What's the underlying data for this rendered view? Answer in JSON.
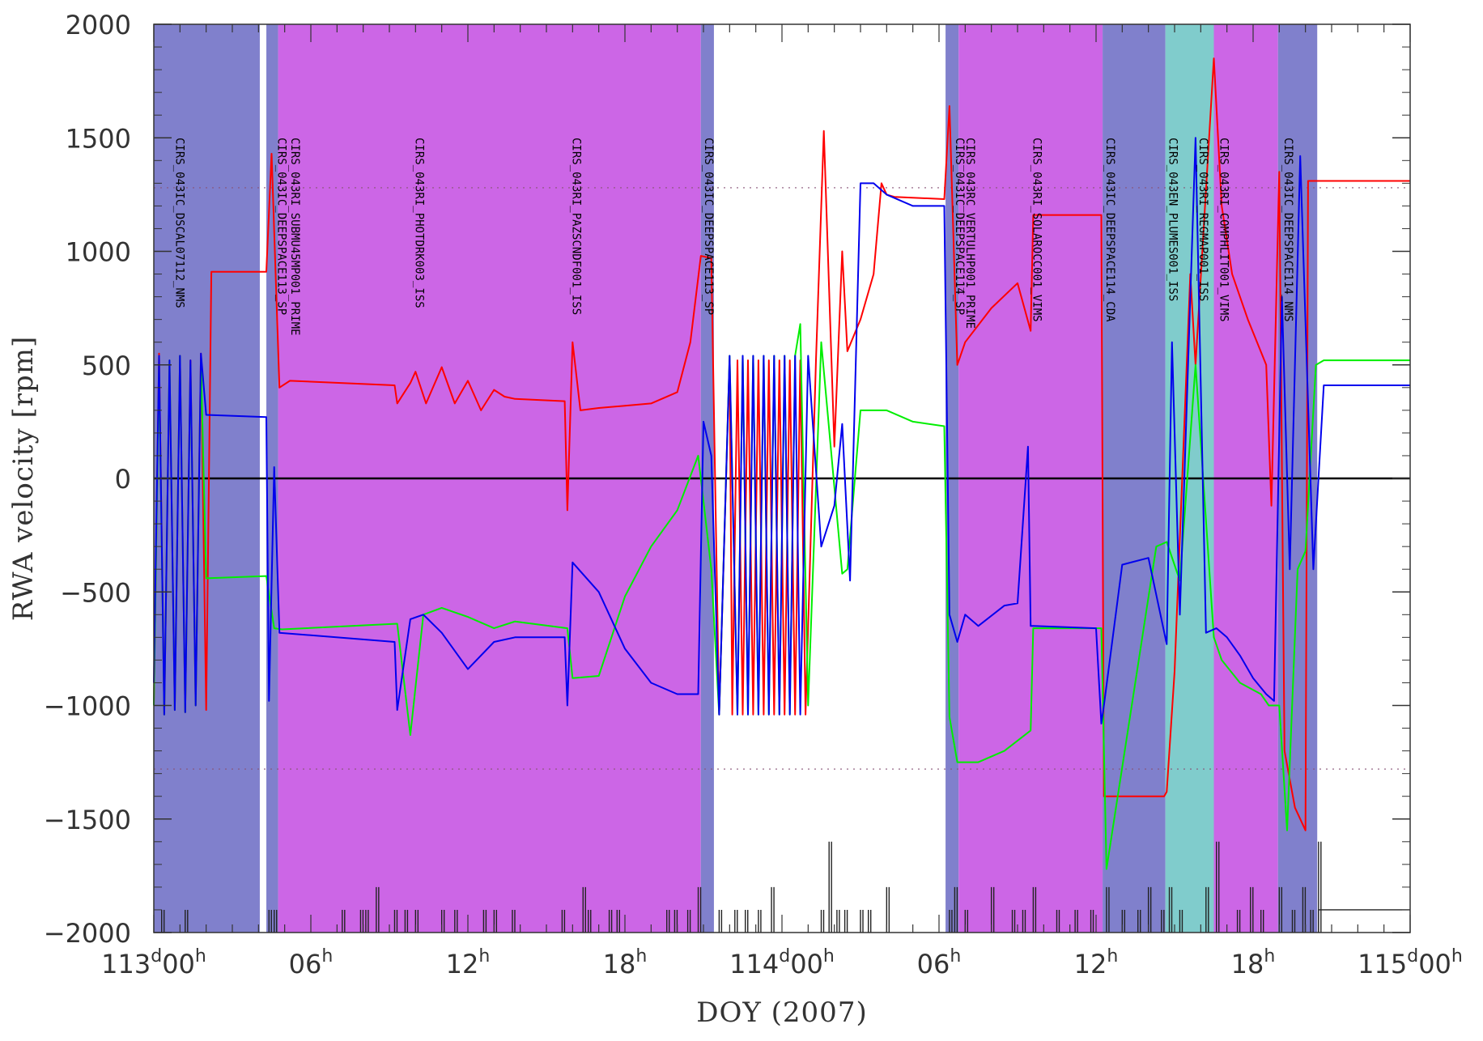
{
  "chart_data": {
    "type": "line",
    "xlabel": "DOY (2007)",
    "ylabel": "RWA velocity [rpm]",
    "x_unit": "hours since 113d00h",
    "xlim": [
      0,
      48
    ],
    "ylim": [
      -2000,
      2000
    ],
    "x_tick_labels": [
      {
        "x": 0,
        "main": "113",
        "sup1": "d",
        "mid": "00",
        "sup2": "h"
      },
      {
        "x": 6,
        "main": "",
        "sup1": "",
        "mid": "06",
        "sup2": "h"
      },
      {
        "x": 12,
        "main": "",
        "sup1": "",
        "mid": "12",
        "sup2": "h"
      },
      {
        "x": 18,
        "main": "",
        "sup1": "",
        "mid": "18",
        "sup2": "h"
      },
      {
        "x": 24,
        "main": "114",
        "sup1": "d",
        "mid": "00",
        "sup2": "h"
      },
      {
        "x": 30,
        "main": "",
        "sup1": "",
        "mid": "06",
        "sup2": "h"
      },
      {
        "x": 36,
        "main": "",
        "sup1": "",
        "mid": "12",
        "sup2": "h"
      },
      {
        "x": 42,
        "main": "",
        "sup1": "",
        "mid": "18",
        "sup2": "h"
      },
      {
        "x": 48,
        "main": "115",
        "sup1": "d",
        "mid": "00",
        "sup2": "h"
      }
    ],
    "y_ticks": [
      -2000,
      -1500,
      -1000,
      -500,
      0,
      500,
      1000,
      1500,
      2000
    ],
    "y_tick_labels": [
      "−2000",
      "−1500",
      "−1000",
      "−500",
      "0",
      "500",
      "1000",
      "1500",
      "2000"
    ],
    "reference_lines": {
      "zero": 0,
      "limits": [
        1280,
        -1280
      ]
    },
    "colors": {
      "blue_band": "#8080cc",
      "magenta_band": "#cc66e6",
      "cyan_band": "#80cccc",
      "red": "#ff0000",
      "green": "#00ee00",
      "blue": "#0000ee"
    },
    "bands": [
      {
        "start": 0.0,
        "end": 4.05,
        "color": "blue_band"
      },
      {
        "start": 4.3,
        "end": 4.75,
        "color": "blue_band"
      },
      {
        "start": 4.75,
        "end": 20.9,
        "color": "magenta_band"
      },
      {
        "start": 20.9,
        "end": 21.4,
        "color": "blue_band"
      },
      {
        "start": 30.25,
        "end": 30.75,
        "color": "blue_band"
      },
      {
        "start": 30.75,
        "end": 36.25,
        "color": "magenta_band"
      },
      {
        "start": 36.25,
        "end": 38.65,
        "color": "blue_band"
      },
      {
        "start": 38.65,
        "end": 40.5,
        "color": "cyan_band"
      },
      {
        "start": 40.5,
        "end": 42.95,
        "color": "magenta_band"
      },
      {
        "start": 42.95,
        "end": 44.45,
        "color": "blue_band"
      }
    ],
    "observations": [
      {
        "x": 0.7,
        "label": "CIRS_043IC_DSCAL07112_NMS"
      },
      {
        "x": 4.6,
        "label": "CIRS_043IC_DEEPSPACE113_SP"
      },
      {
        "x": 5.1,
        "label": "CIRS_043RI_SUBMU45MP001_PRIME"
      },
      {
        "x": 9.85,
        "label": "CIRS_043RI_PHOTDRK003_ISS"
      },
      {
        "x": 15.85,
        "label": "CIRS_043RI_PAZSCNDF001_ISS"
      },
      {
        "x": 20.9,
        "label": "CIRS_043IC_DEEPSPACE113_SP"
      },
      {
        "x": 30.5,
        "label": "CIRS_043IC_DEEPSPACE114_SP"
      },
      {
        "x": 30.9,
        "label": "CIRS_043RC_VERTULHP001_PRIME"
      },
      {
        "x": 33.45,
        "label": "CIRS_043RI_SOLAROCC001_VIMS"
      },
      {
        "x": 36.25,
        "label": "CIRS_043IC_DEEPSPACE114_CDA"
      },
      {
        "x": 38.65,
        "label": "CIRS_043EN_PLUMES001_ISS"
      },
      {
        "x": 39.8,
        "label": "CIRS_043RI_REGMAP001_ISS"
      },
      {
        "x": 40.6,
        "label": "CIRS_043RI_COMPHLIT001_VIMS"
      },
      {
        "x": 43.05,
        "label": "CIRS_043IC_DEEPSPACE114_NMS"
      }
    ],
    "series": [
      {
        "color": "red",
        "x": [
          0,
          0.2,
          0.4,
          0.6,
          0.8,
          1.0,
          1.2,
          1.4,
          1.6,
          1.8,
          2.0,
          2.2,
          4.3,
          4.5,
          4.8,
          5.2,
          9.2,
          9.3,
          9.8,
          10.0,
          10.4,
          11.0,
          11.5,
          12.0,
          12.5,
          13.0,
          13.4,
          13.8,
          15.7,
          15.8,
          16.0,
          16.3,
          17.0,
          18.0,
          19.0,
          20.0,
          20.5,
          20.9,
          21.3,
          21.6,
          22.0,
          22.1,
          22.3,
          22.5,
          22.7,
          22.9,
          23.1,
          23.3,
          23.5,
          23.7,
          23.9,
          24.1,
          24.3,
          24.5,
          24.7,
          24.9,
          25.3,
          25.6,
          26.0,
          26.3,
          26.5,
          27.0,
          27.5,
          27.8,
          28.0,
          28.3,
          30.2,
          30.4,
          30.7,
          31.0,
          32.0,
          33.0,
          33.5,
          33.6,
          36.0,
          36.2,
          36.3,
          38.6,
          38.7,
          39.0,
          39.6,
          39.8,
          40.5,
          40.8,
          41.2,
          41.8,
          42.5,
          42.7,
          43.0,
          43.2,
          43.6,
          44.0,
          44.1,
          44.4,
          44.7,
          48
        ],
        "y": [
          -1000,
          550,
          -1040,
          500,
          -1020,
          540,
          -1030,
          520,
          -1000,
          550,
          -1020,
          910,
          910,
          1430,
          400,
          430,
          410,
          330,
          420,
          470,
          330,
          490,
          330,
          430,
          300,
          390,
          360,
          350,
          340,
          -140,
          600,
          300,
          310,
          320,
          330,
          380,
          600,
          980,
          970,
          -1040,
          520,
          -1040,
          520,
          -1040,
          520,
          -1040,
          520,
          -1040,
          520,
          -1040,
          520,
          -1040,
          520,
          -1040,
          520,
          -1040,
          520,
          1530,
          140,
          1000,
          560,
          700,
          900,
          1300,
          1250,
          1240,
          1230,
          1640,
          500,
          600,
          750,
          860,
          650,
          1160,
          1160,
          1160,
          -1400,
          -1400,
          -1380,
          -850,
          900,
          500,
          1850,
          1200,
          900,
          700,
          500,
          -120,
          1350,
          -1200,
          -1450,
          -1550,
          1310,
          1310,
          1310,
          1310
        ],
        "style": "stroke"
      },
      {
        "color": "green",
        "x": [
          0,
          0.2,
          0.4,
          0.6,
          0.8,
          1.0,
          1.2,
          1.4,
          1.6,
          1.8,
          2.0,
          4.3,
          4.6,
          4.9,
          9.3,
          9.8,
          10.3,
          11.0,
          12.0,
          13.0,
          13.8,
          15.8,
          16.0,
          17.0,
          18.0,
          19.0,
          20.0,
          20.8,
          21.3,
          21.6,
          22.0,
          22.3,
          22.5,
          22.7,
          22.9,
          23.1,
          23.3,
          23.5,
          23.7,
          23.9,
          24.1,
          24.3,
          24.5,
          24.7,
          25.0,
          25.5,
          26.3,
          26.5,
          27.0,
          28.0,
          29.0,
          30.2,
          30.4,
          30.7,
          31.5,
          32.5,
          33.5,
          33.6,
          36.0,
          36.2,
          36.4,
          38.3,
          38.7,
          39.2,
          39.8,
          40.5,
          40.8,
          41.5,
          42.3,
          42.6,
          43.0,
          43.3,
          43.7,
          44.0,
          44.4,
          44.7,
          48
        ],
        "y": [
          -1000,
          500,
          -1040,
          520,
          -1020,
          540,
          -1030,
          500,
          -1000,
          520,
          -440,
          -430,
          -660,
          -665,
          -640,
          -1130,
          -600,
          -570,
          -610,
          -660,
          -630,
          -660,
          -880,
          -870,
          -520,
          -300,
          -140,
          100,
          -400,
          -1040,
          540,
          -1040,
          540,
          -1040,
          540,
          -1040,
          540,
          -1040,
          540,
          -1040,
          540,
          -1040,
          540,
          680,
          -1000,
          600,
          -420,
          -400,
          300,
          300,
          250,
          230,
          -1050,
          -1250,
          -1250,
          -1200,
          -1110,
          -660,
          -660,
          -660,
          -1720,
          -300,
          -280,
          -450,
          500,
          -700,
          -800,
          -900,
          -950,
          -1000,
          -1000,
          -1550,
          -400,
          -320,
          500,
          520,
          520
        ],
        "style": "stroke"
      },
      {
        "color": "blue",
        "x": [
          0,
          0.2,
          0.4,
          0.6,
          0.8,
          1.0,
          1.2,
          1.4,
          1.6,
          1.8,
          2.0,
          4.3,
          4.4,
          4.6,
          4.8,
          9.2,
          9.3,
          9.8,
          10.3,
          11.0,
          12.0,
          13.0,
          13.8,
          15.7,
          15.8,
          16.0,
          17.0,
          18.0,
          19.0,
          20.0,
          20.8,
          21.0,
          21.3,
          21.6,
          22.0,
          22.3,
          22.5,
          22.7,
          22.9,
          23.1,
          23.3,
          23.5,
          23.7,
          23.9,
          24.1,
          24.3,
          24.5,
          24.7,
          25.0,
          25.5,
          26.0,
          26.3,
          26.6,
          27.0,
          27.5,
          28.0,
          29.0,
          30.2,
          30.4,
          30.7,
          31.0,
          31.5,
          32.5,
          33.0,
          33.4,
          33.5,
          33.6,
          36.0,
          36.2,
          36.3,
          37.0,
          38.0,
          38.7,
          38.9,
          39.2,
          39.8,
          40.2,
          40.6,
          41.0,
          41.5,
          42.0,
          42.5,
          42.8,
          43.1,
          43.4,
          43.8,
          44.3,
          44.7,
          48
        ],
        "y": [
          -900,
          540,
          -1040,
          520,
          -1020,
          540,
          -1030,
          520,
          -1000,
          550,
          280,
          270,
          -980,
          50,
          -680,
          -720,
          -1020,
          -620,
          -600,
          -680,
          -840,
          -720,
          -700,
          -700,
          -1000,
          -370,
          -500,
          -750,
          -900,
          -950,
          -950,
          250,
          100,
          -1040,
          540,
          -1040,
          540,
          -1040,
          540,
          -1040,
          540,
          -1040,
          540,
          -1040,
          540,
          -1040,
          540,
          -1040,
          540,
          -300,
          -120,
          240,
          -450,
          1300,
          1300,
          1250,
          1200,
          1200,
          -600,
          -720,
          -600,
          -650,
          -560,
          -550,
          140,
          -650,
          -650,
          -660,
          -1080,
          -1000,
          -380,
          -350,
          -730,
          600,
          -600,
          1500,
          -680,
          -660,
          -700,
          -780,
          -880,
          -950,
          -980,
          800,
          -400,
          1420,
          -400,
          410,
          410
        ],
        "style": "stroke"
      }
    ],
    "event_markers": {
      "base": -1900,
      "x": [
        0.3,
        1.2,
        4.4,
        4.6,
        7.2,
        7.9,
        8.1,
        8.5,
        9.2,
        9.6,
        10.0,
        11.0,
        11.5,
        12.6,
        13.0,
        13.7,
        15.6,
        16.4,
        16.6,
        17.4,
        17.7,
        19.6,
        19.9,
        20.4,
        20.8,
        21.6,
        22.2,
        22.6,
        23.1,
        23.6,
        25.5,
        25.8,
        26.1,
        26.4,
        27.0,
        27.3,
        28.0,
        30.4,
        30.6,
        31.0,
        32.0,
        32.8,
        33.2,
        33.6,
        34.5,
        35.2,
        35.8,
        36.4,
        37.0,
        37.6,
        38.0,
        38.5,
        38.8,
        39.2,
        40.2,
        40.6,
        41.4,
        41.9,
        42.3,
        43.0,
        43.5,
        43.9,
        44.2,
        44.5
      ],
      "peak": [
        -1900,
        -1900,
        -1900,
        -1900,
        -1900,
        -1900,
        -1900,
        -1800,
        -1900,
        -1900,
        -1900,
        -1900,
        -1900,
        -1900,
        -1900,
        -1900,
        -1900,
        -1800,
        -1900,
        -1900,
        -1900,
        -1900,
        -1900,
        -1900,
        -1800,
        -1900,
        -1900,
        -1900,
        -1900,
        -1800,
        -1900,
        -1600,
        -1900,
        -1900,
        -1900,
        -1900,
        -1800,
        -1900,
        -1800,
        -1900,
        -1800,
        -1900,
        -1900,
        -1800,
        -1900,
        -1900,
        -1900,
        -1800,
        -1900,
        -1900,
        -1800,
        -1900,
        -1800,
        -1900,
        -1800,
        -1600,
        -1900,
        -1800,
        -1900,
        -1800,
        -1900,
        -1800,
        -1900,
        -1600
      ]
    }
  }
}
